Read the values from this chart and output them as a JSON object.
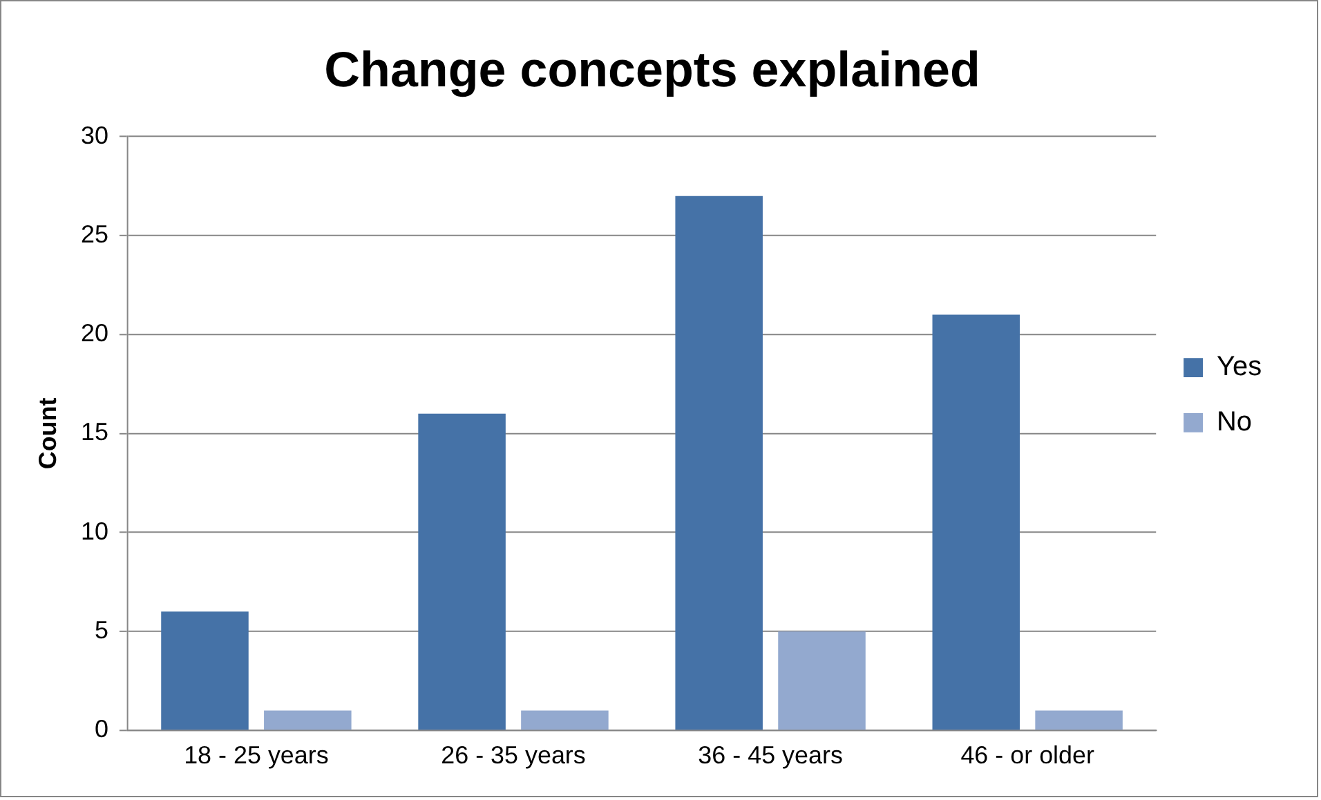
{
  "chart_data": {
    "type": "bar",
    "title": "Change concepts explained",
    "ylabel": "Count",
    "categories": [
      "18 - 25 years",
      "26 - 35 years",
      "36 - 45 years",
      "46 - or older"
    ],
    "series": [
      {
        "name": "Yes",
        "color": "#4572a7",
        "values": [
          6,
          16,
          27,
          21
        ]
      },
      {
        "name": "No",
        "color": "#93a9cf",
        "values": [
          1,
          1,
          5,
          1
        ]
      }
    ],
    "ylim": [
      0,
      30
    ],
    "yticks": [
      0,
      5,
      10,
      15,
      20,
      25,
      30
    ],
    "grid": "y",
    "legend": "right"
  }
}
